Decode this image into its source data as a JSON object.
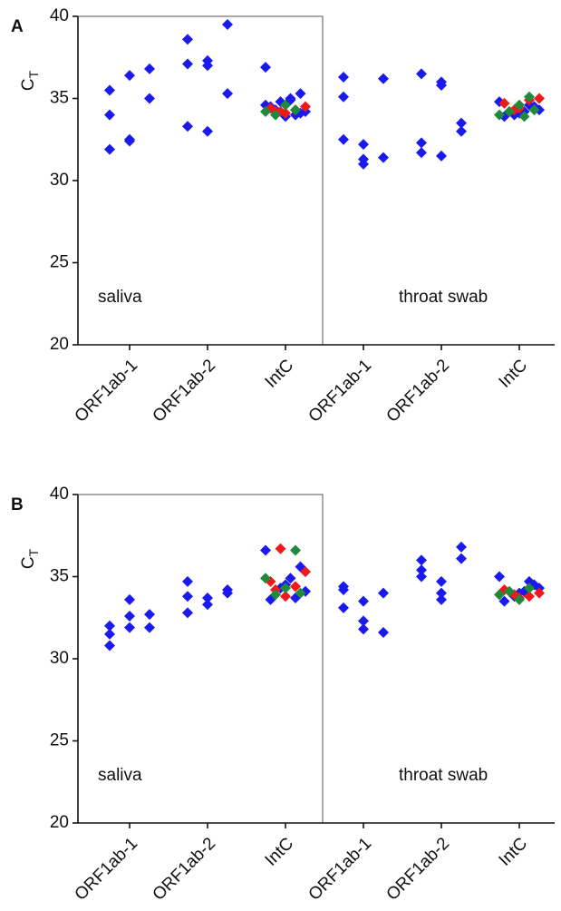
{
  "chart_data": [
    {
      "type": "strip",
      "label": "A",
      "y_label": {
        "main": "C",
        "sub": "T"
      },
      "categories": [
        "ORF1ab-1",
        "ORF1ab-2",
        "IntC",
        "ORF1ab-1",
        "ORF1ab-2",
        "IntC"
      ],
      "annotations": [
        "saliva",
        "throat swab"
      ],
      "ylim": [
        20,
        40
      ],
      "yticks": [
        20,
        25,
        30,
        35,
        40
      ],
      "series": [
        {
          "color": "#1a1aee",
          "values": [
            [
              31.9,
              36.4,
              35.0,
              34.0,
              32.5,
              36.8,
              35.5,
              32.4
            ],
            [
              37.1,
              33.0,
              39.5,
              38.6,
              37.0,
              35.3,
              33.3,
              37.3
            ],
            [
              36.9,
              35.3,
              35.0,
              34.8,
              34.5,
              34.2,
              34.0,
              33.9,
              34.3,
              34.6,
              34.1,
              34.9
            ],
            [
              32.5,
              31.0,
              36.2,
              35.1,
              32.2,
              31.4,
              36.3,
              31.3
            ],
            [
              36.5,
              31.5,
              33.5,
              32.3,
              35.8,
              33.0,
              31.7,
              36.0
            ],
            [
              34.8,
              34.5,
              34.2,
              34.0,
              33.9,
              34.3,
              34.6,
              34.1
            ]
          ]
        },
        {
          "color": "#f01818",
          "values": [
            [],
            [],
            [
              34.2,
              34.4,
              34.5,
              34.3,
              34.1,
              34.2
            ],
            [],
            [],
            [
              34.3,
              34.7,
              35.0,
              34.9,
              34.4,
              34.2
            ]
          ]
        },
        {
          "color": "#1f8a3c",
          "values": [
            [],
            [],
            [
              34.3,
              34.6,
              34.0,
              34.2
            ],
            [],
            [],
            [
              35.1,
              34.6,
              34.2,
              34.0,
              34.3,
              33.9
            ]
          ]
        }
      ]
    },
    {
      "type": "strip",
      "label": "B",
      "y_label": {
        "main": "C",
        "sub": "T"
      },
      "categories": [
        "ORF1ab-1",
        "ORF1ab-2",
        "IntC",
        "ORF1ab-1",
        "ORF1ab-2",
        "IntC"
      ],
      "annotations": [
        "saliva",
        "throat swab"
      ],
      "ylim": [
        20,
        40
      ],
      "yticks": [
        20,
        25,
        30,
        35,
        40
      ],
      "series": [
        {
          "color": "#1a1aee",
          "values": [
            [
              32.0,
              31.9,
              32.7,
              30.8,
              33.6,
              31.9,
              31.5,
              32.6
            ],
            [
              34.7,
              33.7,
              34.2,
              32.8,
              33.3,
              34.0,
              33.8
            ],
            [
              36.6,
              35.6,
              34.9,
              34.3,
              33.6,
              34.1,
              33.7,
              34.5
            ],
            [
              34.2,
              33.5,
              31.6,
              34.4,
              32.3,
              34.0,
              33.1,
              31.8
            ],
            [
              35.4,
              33.6,
              36.8,
              36.0,
              34.7,
              36.1,
              35.0,
              34.0
            ],
            [
              35.0,
              34.5,
              34.1,
              33.8,
              33.5,
              34.3,
              34.7,
              34.0
            ]
          ]
        },
        {
          "color": "#f01818",
          "values": [
            [],
            [],
            [
              36.7,
              34.7,
              35.3,
              34.4,
              33.8,
              34.2
            ],
            [],
            [],
            [
              33.9,
              34.2,
              34.0,
              33.8,
              33.7
            ]
          ]
        },
        {
          "color": "#1f8a3c",
          "values": [
            [],
            [],
            [
              36.6,
              34.3,
              33.9,
              34.9,
              34.0
            ],
            [],
            [],
            [
              34.3,
              33.6,
              34.1,
              33.9
            ]
          ]
        }
      ]
    }
  ]
}
